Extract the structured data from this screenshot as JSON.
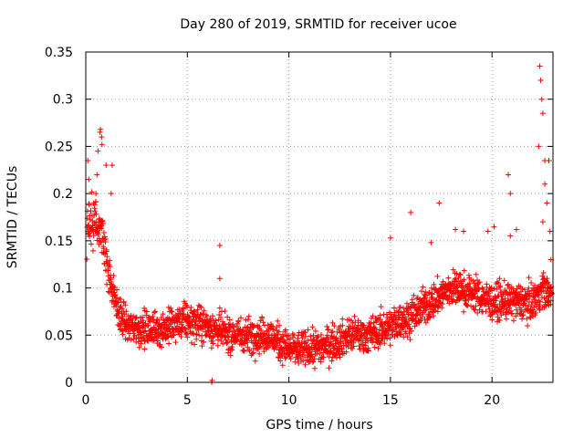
{
  "chart_data": {
    "type": "scatter",
    "title": "Day 280 of 2019, SRMTID for receiver ucoe",
    "xlabel": "GPS time / hours",
    "ylabel": "SRMTID / TECUs",
    "xlim": [
      0,
      23
    ],
    "ylim": [
      0,
      0.35
    ],
    "x_ticks": [
      0,
      5,
      10,
      15,
      20
    ],
    "x_tick_labels": [
      "0",
      "5",
      "10",
      "15",
      "20"
    ],
    "y_ticks": [
      0,
      0.05,
      0.1,
      0.15,
      0.2,
      0.25,
      0.3,
      0.35
    ],
    "y_tick_labels": [
      "0",
      "0.05",
      "0.1",
      "0.15",
      "0.2",
      "0.25",
      "0.3",
      "0.35"
    ],
    "grid": true,
    "marker": "+",
    "series": [
      {
        "name": "SRMTID",
        "color": "#ff0000",
        "trend": {
          "x": [
            0.0,
            0.2,
            0.5,
            0.8,
            1.0,
            1.3,
            1.6,
            2.0,
            2.5,
            3.0,
            4.0,
            5.0,
            6.0,
            7.0,
            8.0,
            9.0,
            10.0,
            11.0,
            12.0,
            13.0,
            14.0,
            15.0,
            16.0,
            17.0,
            18.0,
            19.0,
            20.0,
            21.0,
            22.0,
            22.5,
            23.0
          ],
          "y": [
            0.15,
            0.17,
            0.17,
            0.16,
            0.13,
            0.1,
            0.075,
            0.06,
            0.058,
            0.055,
            0.058,
            0.065,
            0.06,
            0.05,
            0.05,
            0.05,
            0.035,
            0.035,
            0.04,
            0.05,
            0.05,
            0.06,
            0.07,
            0.085,
            0.1,
            0.095,
            0.085,
            0.085,
            0.085,
            0.1,
            0.09
          ]
        },
        "spread": 0.018,
        "samples": 2200,
        "highlights": [
          {
            "x": 0.5,
            "y": 0.2
          },
          {
            "x": 0.55,
            "y": 0.22
          },
          {
            "x": 0.6,
            "y": 0.245
          },
          {
            "x": 0.7,
            "y": 0.265
          },
          {
            "x": 0.72,
            "y": 0.268
          },
          {
            "x": 0.78,
            "y": 0.26
          },
          {
            "x": 0.8,
            "y": 0.252
          },
          {
            "x": 1.0,
            "y": 0.23
          },
          {
            "x": 1.3,
            "y": 0.23
          },
          {
            "x": 1.25,
            "y": 0.2
          },
          {
            "x": 0.1,
            "y": 0.235
          },
          {
            "x": 0.15,
            "y": 0.215
          },
          {
            "x": 6.6,
            "y": 0.145
          },
          {
            "x": 6.6,
            "y": 0.11
          },
          {
            "x": 15.0,
            "y": 0.153
          },
          {
            "x": 16.0,
            "y": 0.18
          },
          {
            "x": 17.0,
            "y": 0.148
          },
          {
            "x": 17.4,
            "y": 0.19
          },
          {
            "x": 18.2,
            "y": 0.162
          },
          {
            "x": 18.6,
            "y": 0.16
          },
          {
            "x": 19.8,
            "y": 0.16
          },
          {
            "x": 20.1,
            "y": 0.165
          },
          {
            "x": 20.8,
            "y": 0.22
          },
          {
            "x": 20.9,
            "y": 0.2
          },
          {
            "x": 20.9,
            "y": 0.155
          },
          {
            "x": 21.2,
            "y": 0.162
          },
          {
            "x": 22.35,
            "y": 0.335
          },
          {
            "x": 22.4,
            "y": 0.32
          },
          {
            "x": 22.45,
            "y": 0.3
          },
          {
            "x": 22.5,
            "y": 0.285
          },
          {
            "x": 22.3,
            "y": 0.25
          },
          {
            "x": 22.6,
            "y": 0.235
          },
          {
            "x": 22.8,
            "y": 0.235
          },
          {
            "x": 22.6,
            "y": 0.21
          },
          {
            "x": 22.7,
            "y": 0.19
          },
          {
            "x": 22.5,
            "y": 0.17
          },
          {
            "x": 22.85,
            "y": 0.16
          },
          {
            "x": 22.9,
            "y": 0.13
          },
          {
            "x": 6.2,
            "y": 0.0
          },
          {
            "x": 6.22,
            "y": 0.002
          }
        ]
      }
    ]
  }
}
